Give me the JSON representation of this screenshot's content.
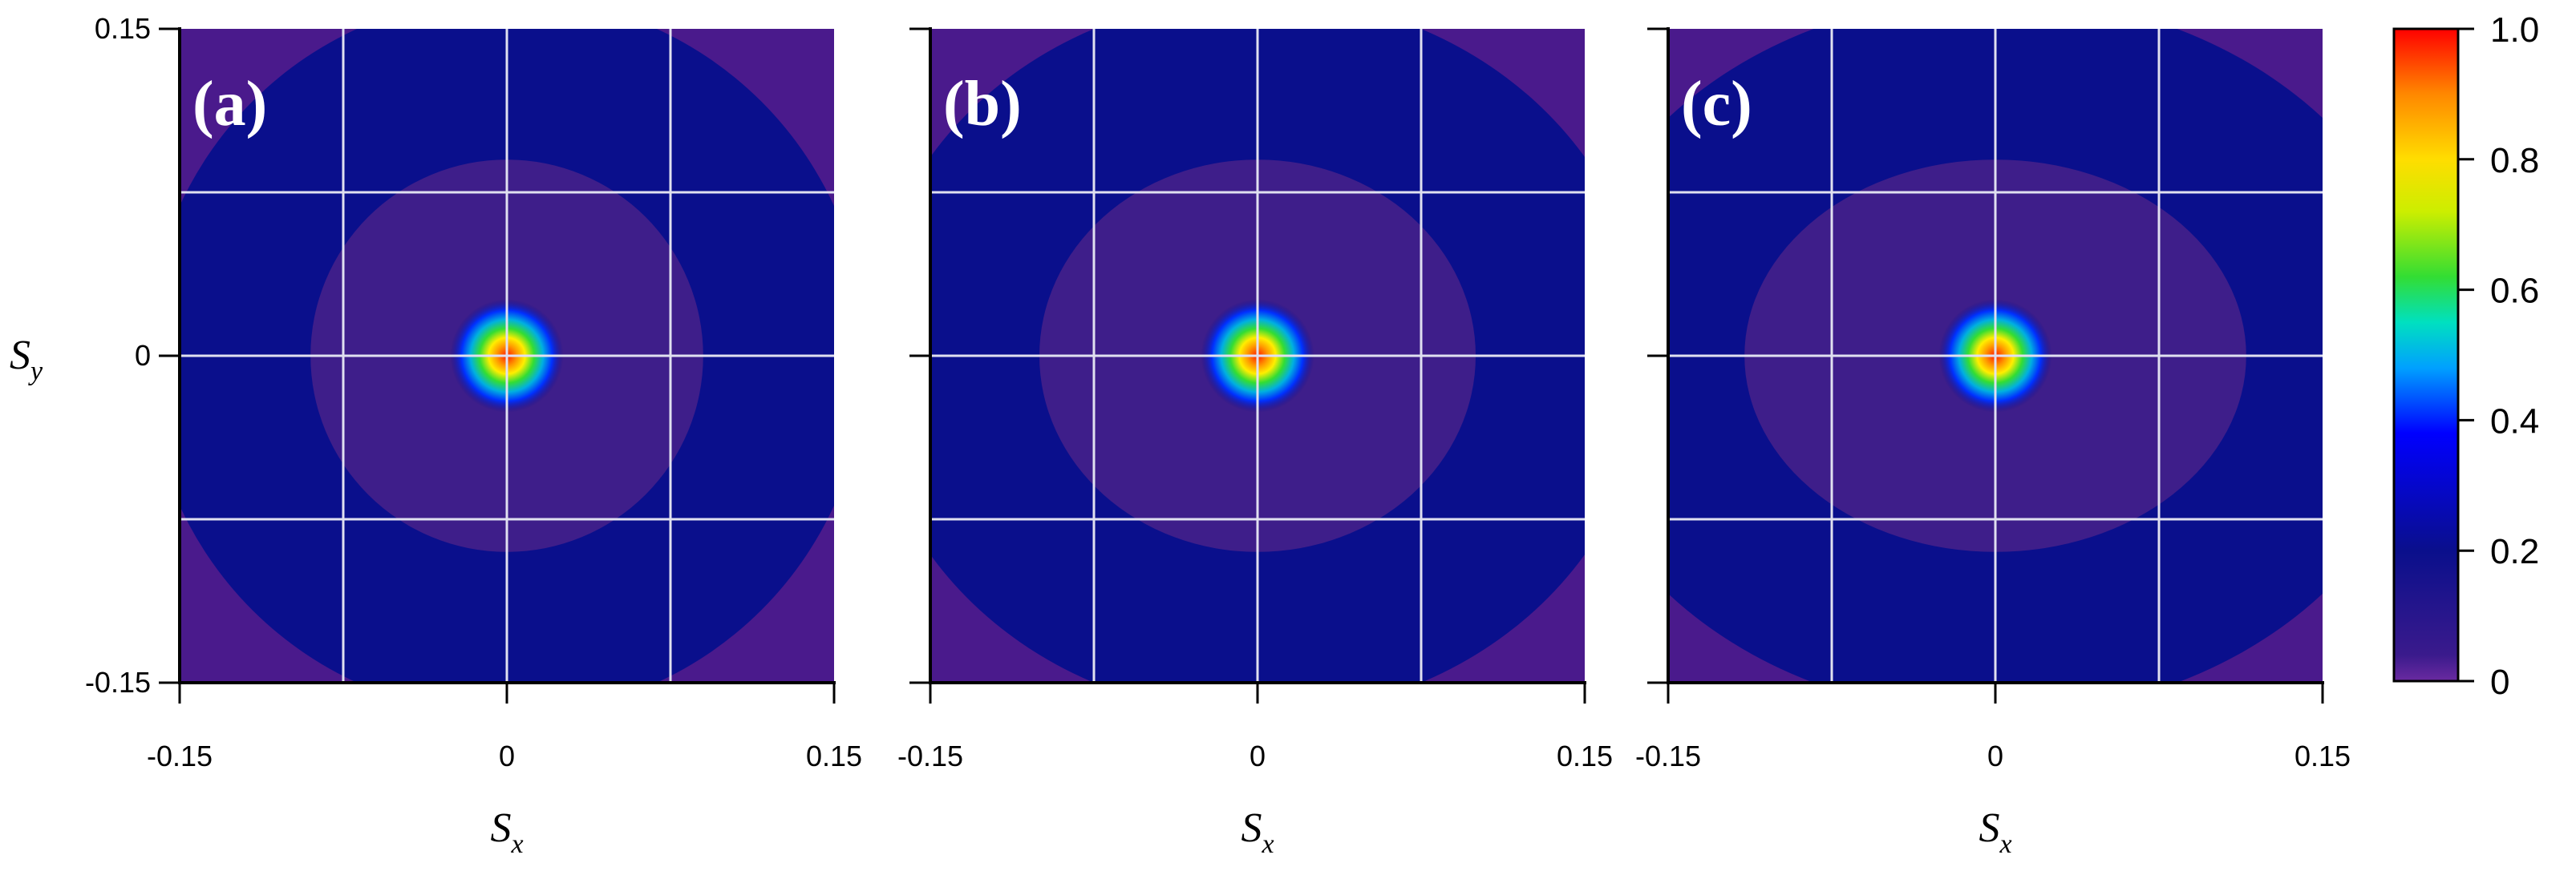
{
  "chart_data": [
    {
      "type": "heatmap",
      "panel_label": "(a)",
      "xlabel": "S",
      "xlabel_sub": "x",
      "ylabel": "S",
      "ylabel_sub": "y",
      "xlim": [
        -0.15,
        0.15
      ],
      "ylim": [
        -0.15,
        0.15
      ],
      "x_ticks": [
        "-0.15",
        "0",
        "0.15"
      ],
      "y_ticks": [
        "0.15",
        "0",
        "-0.15"
      ],
      "grid": true,
      "peak": {
        "x": 0,
        "y": 0,
        "value": 1.0
      },
      "rings": {
        "inner_radius_x": 0.09,
        "inner_radius_y": 0.09,
        "outer_radius_x": 0.165,
        "outer_radius_y": 0.165
      }
    },
    {
      "type": "heatmap",
      "panel_label": "(b)",
      "xlabel": "S",
      "xlabel_sub": "x",
      "xlim": [
        -0.15,
        0.15
      ],
      "ylim": [
        -0.15,
        0.15
      ],
      "x_ticks": [
        "-0.15",
        "0",
        "0.15"
      ],
      "grid": true,
      "peak": {
        "x": 0,
        "y": 0,
        "value": 1.0
      },
      "rings": {
        "inner_radius_x": 0.1,
        "inner_radius_y": 0.09,
        "outer_radius_x": 0.18,
        "outer_radius_y": 0.165
      }
    },
    {
      "type": "heatmap",
      "panel_label": "(c)",
      "xlabel": "S",
      "xlabel_sub": "x",
      "xlim": [
        -0.15,
        0.15
      ],
      "ylim": [
        -0.15,
        0.15
      ],
      "x_ticks": [
        "-0.15",
        "0",
        "0.15"
      ],
      "grid": true,
      "peak": {
        "x": 0,
        "y": 0,
        "value": 1.0
      },
      "rings": {
        "inner_radius_x": 0.115,
        "inner_radius_y": 0.09,
        "outer_radius_x": 0.2,
        "outer_radius_y": 0.165
      }
    }
  ],
  "colorbar": {
    "ticks": [
      "1.0",
      "0.8",
      "0.6",
      "0.4",
      "0.2",
      "0"
    ],
    "tick_values": [
      1.0,
      0.8,
      0.6,
      0.4,
      0.2,
      0
    ],
    "range": [
      0,
      1.0
    ]
  },
  "colors": {
    "background_low": "#4a1a8c",
    "ring": "#0a0f8c",
    "grid": "#e0e0f0"
  }
}
